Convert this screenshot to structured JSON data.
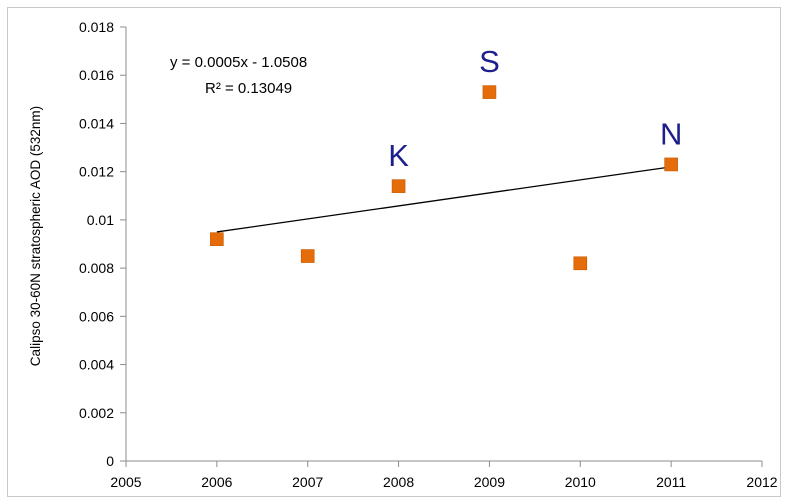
{
  "chart_data": {
    "type": "scatter",
    "title": "",
    "xlabel": "",
    "ylabel": "Calipso 30-60N stratospheric AOD (532nm)",
    "xlim": [
      2005,
      2012
    ],
    "ylim": [
      0,
      0.018
    ],
    "x_ticks": [
      "2005",
      "2006",
      "2007",
      "2008",
      "2009",
      "2010",
      "2011",
      "2012"
    ],
    "y_ticks": [
      "0",
      "0.002",
      "0.004",
      "0.006",
      "0.008",
      "0.01",
      "0.012",
      "0.014",
      "0.016",
      "0.018"
    ],
    "grid": false,
    "legend": "none",
    "series": [
      {
        "x": [
          2006,
          2007,
          2008,
          2009,
          2010,
          2011
        ],
        "y": [
          0.0092,
          0.0085,
          0.0114,
          0.0153,
          0.0082,
          0.0123
        ],
        "color": "#e46c0a",
        "marker": "square"
      }
    ],
    "trendline": {
      "x": [
        2006,
        2011
      ],
      "y": [
        0.0095,
        0.0122
      ],
      "color": "#000000",
      "equation": "y = 0.0005x - 1.0508",
      "r_squared": "R² = 0.13049"
    },
    "point_labels": [
      {
        "text": "K",
        "x": 2008,
        "y": 0.0114
      },
      {
        "text": "S",
        "x": 2009,
        "y": 0.0153
      },
      {
        "text": "N",
        "x": 2011,
        "y": 0.0123
      }
    ],
    "label_color": "#1c1f8c"
  }
}
